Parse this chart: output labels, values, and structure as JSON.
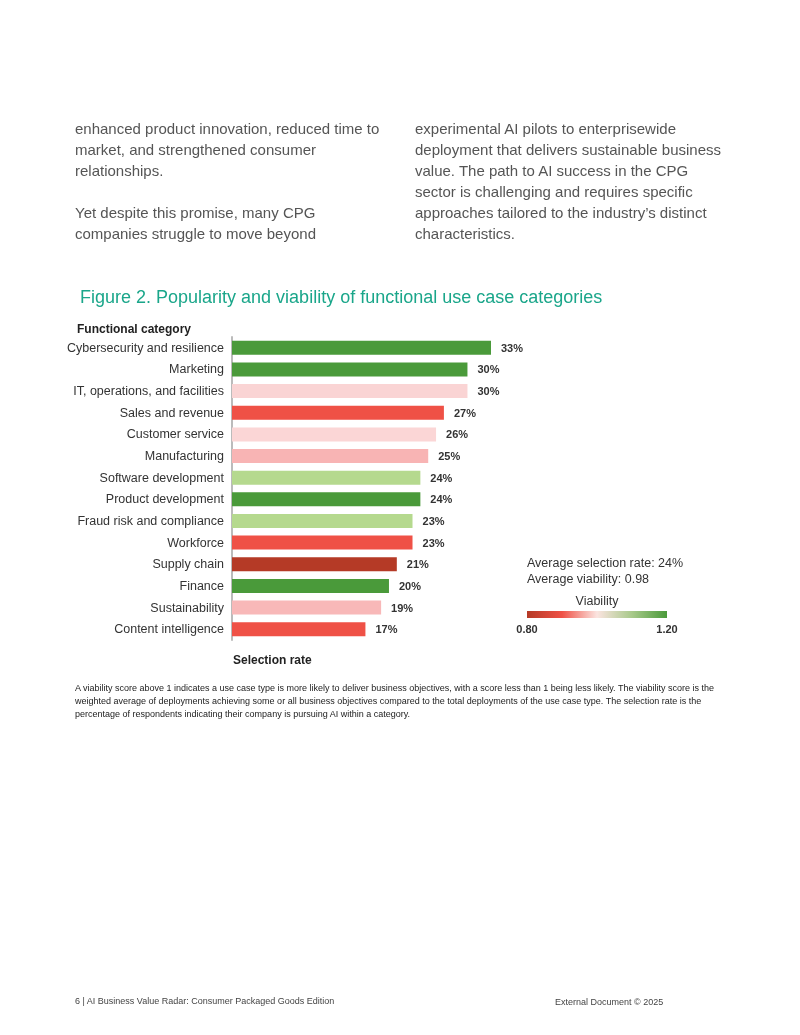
{
  "chart_data": {
    "type": "bar",
    "orientation": "horizontal",
    "title": "Figure 2. Popularity and viability of functional use case categories",
    "ylabel": "Functional category",
    "xlabel": "Selection rate",
    "categories": [
      "Cybersecurity and resilience",
      "Marketing",
      "IT, operations, and facilities",
      "Sales and revenue",
      "Customer service",
      "Manufacturing",
      "Software development",
      "Product development",
      "Fraud risk and compliance",
      "Workforce",
      "Supply chain",
      "Finance",
      "Sustainability",
      "Content intelligence"
    ],
    "values": [
      33,
      30,
      30,
      27,
      26,
      25,
      24,
      24,
      23,
      23,
      21,
      20,
      19,
      17
    ],
    "value_labels": [
      "33%",
      "30%",
      "30%",
      "27%",
      "26%",
      "25%",
      "24%",
      "24%",
      "23%",
      "23%",
      "21%",
      "20%",
      "19%",
      "17%"
    ],
    "colors": [
      "#4a9a3a",
      "#4a9a3a",
      "#fad4d4",
      "#ef5146",
      "#fbd6d6",
      "#f8b4b4",
      "#b5d98e",
      "#4a9a3a",
      "#b5d98e",
      "#ef5146",
      "#b53a26",
      "#4a9a3a",
      "#f8b8b8",
      "#ef5146"
    ],
    "clabel": "Viability",
    "clim": [
      0.8,
      1.2
    ],
    "cticks": [
      {
        "value": 0.8,
        "label": "0.80"
      },
      {
        "value": 1.2,
        "label": "1.20"
      }
    ],
    "grid": false,
    "annotations": [
      "enhanced product innovation, reduced time to market, and strengthened consumer relationships.",
      "Yet despite this promise, many CPG companies struggle to move beyond",
      "experimental AI pilots to enterprisewide deployment that delivers sustainable business value. The path to AI success in the CPG sector is challenging and requires specific approaches tailored to the industry’s distinct characteristics.",
      "Average selection rate: 24%",
      "Average viability: 0.98",
      "A viability score above 1 indicates a use case type is more likely to deliver business objectives, with a score less than 1 being less likely. The viability score is the weighted average of deployments achieving some or all business objectives compared to the total deployments of the use case type. The selection rate is the percentage of respondents indicating their company is pursuing AI within a category.",
      "6 | AI Business Value Radar: Consumer Packaged Goods Edition",
      "External Document © 2025"
    ]
  }
}
